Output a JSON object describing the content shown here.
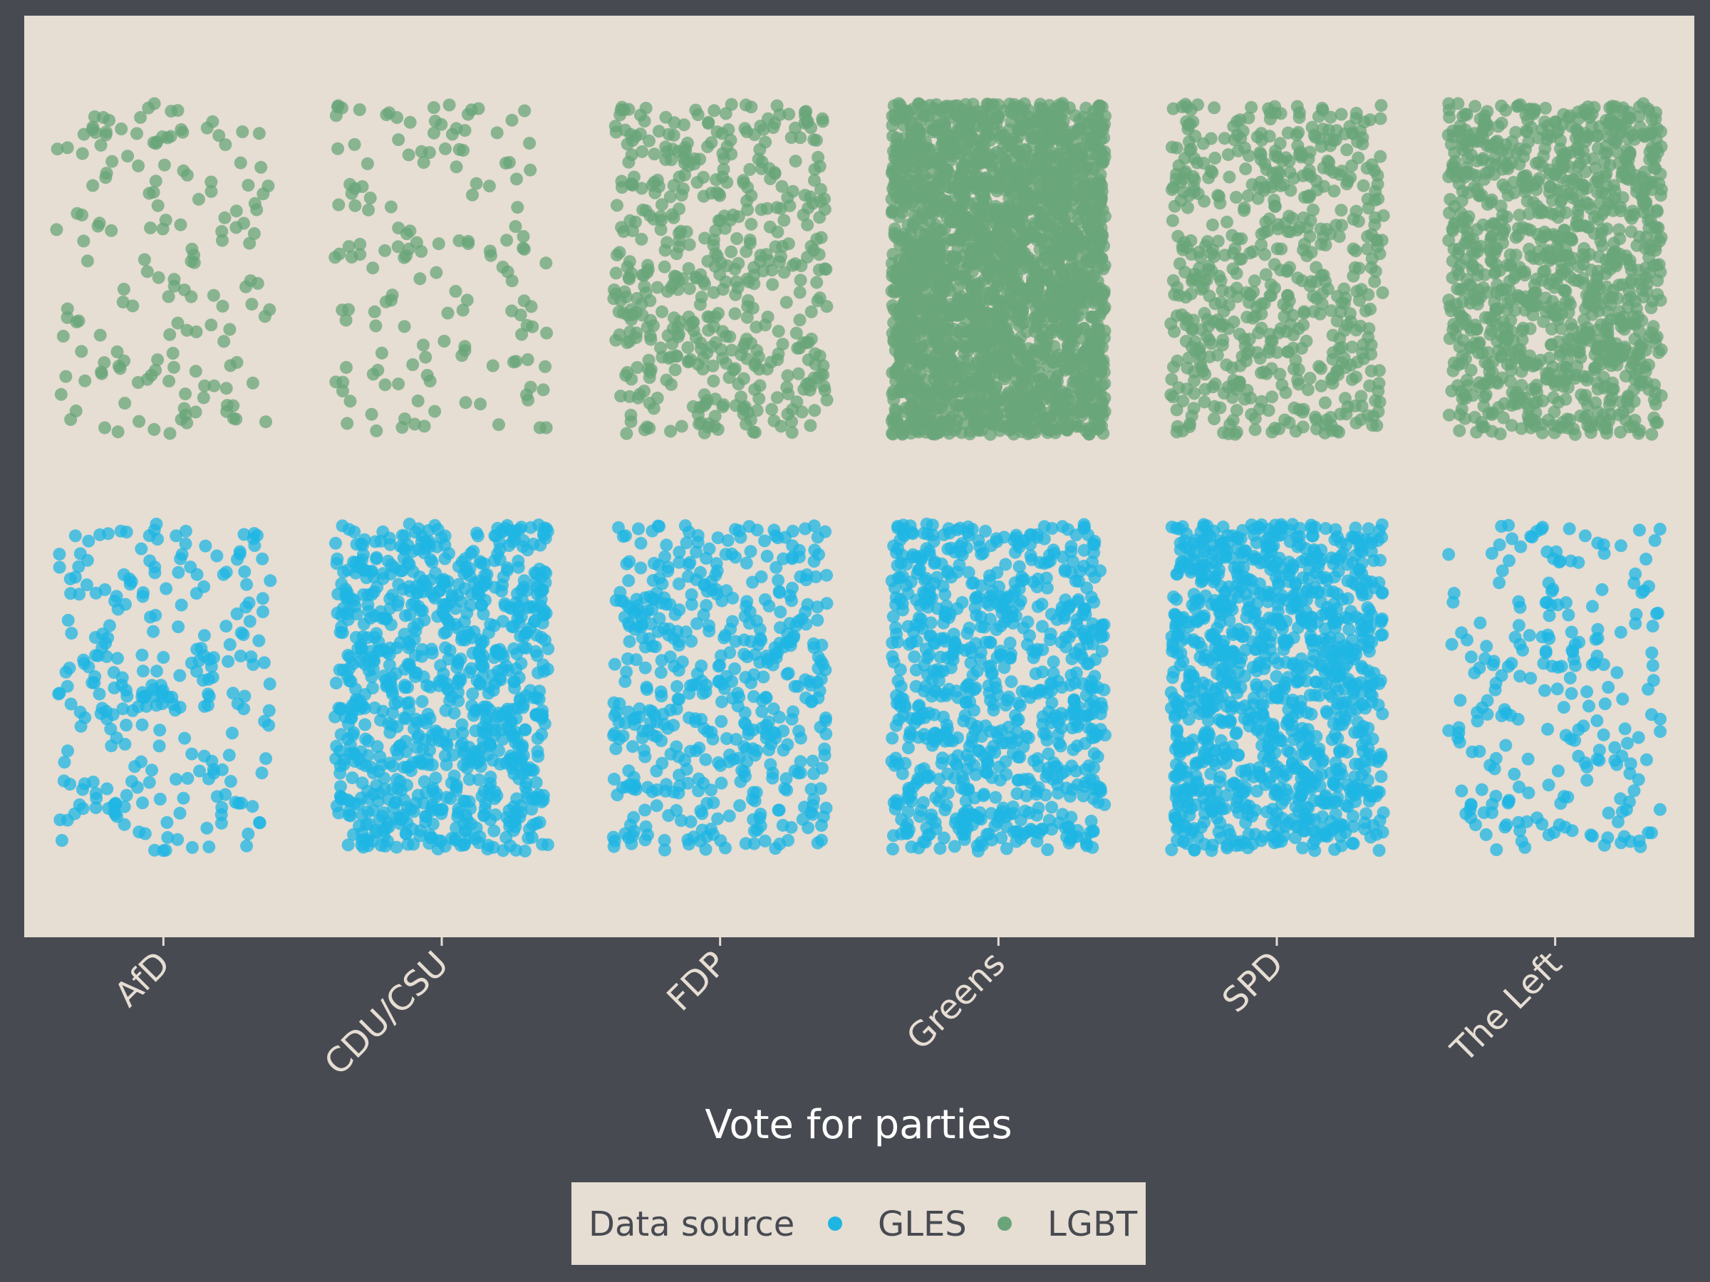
{
  "chart_data": {
    "type": "scatter",
    "subtype": "jitter-strip",
    "xlabel": "Vote for parties",
    "categories": [
      "AfD",
      "CDU/CSU",
      "FDP",
      "Greens",
      "SPD",
      "The Left"
    ],
    "series": [
      {
        "name": "LGBT",
        "color": "#6aa57a",
        "row": "top",
        "approx_counts": [
          160,
          150,
          500,
          2500,
          600,
          1100
        ]
      },
      {
        "name": "GLES",
        "color": "#1fb5e3",
        "row": "bottom",
        "approx_counts": [
          260,
          900,
          500,
          800,
          1100,
          230
        ]
      }
    ],
    "legend": {
      "title": "Data source",
      "position": "bottom",
      "entries": [
        "GLES",
        "LGBT"
      ]
    },
    "grid": false,
    "colors": {
      "panel": "#e6ddd3",
      "background": "#474a51",
      "text": "#e6ddd3"
    }
  }
}
